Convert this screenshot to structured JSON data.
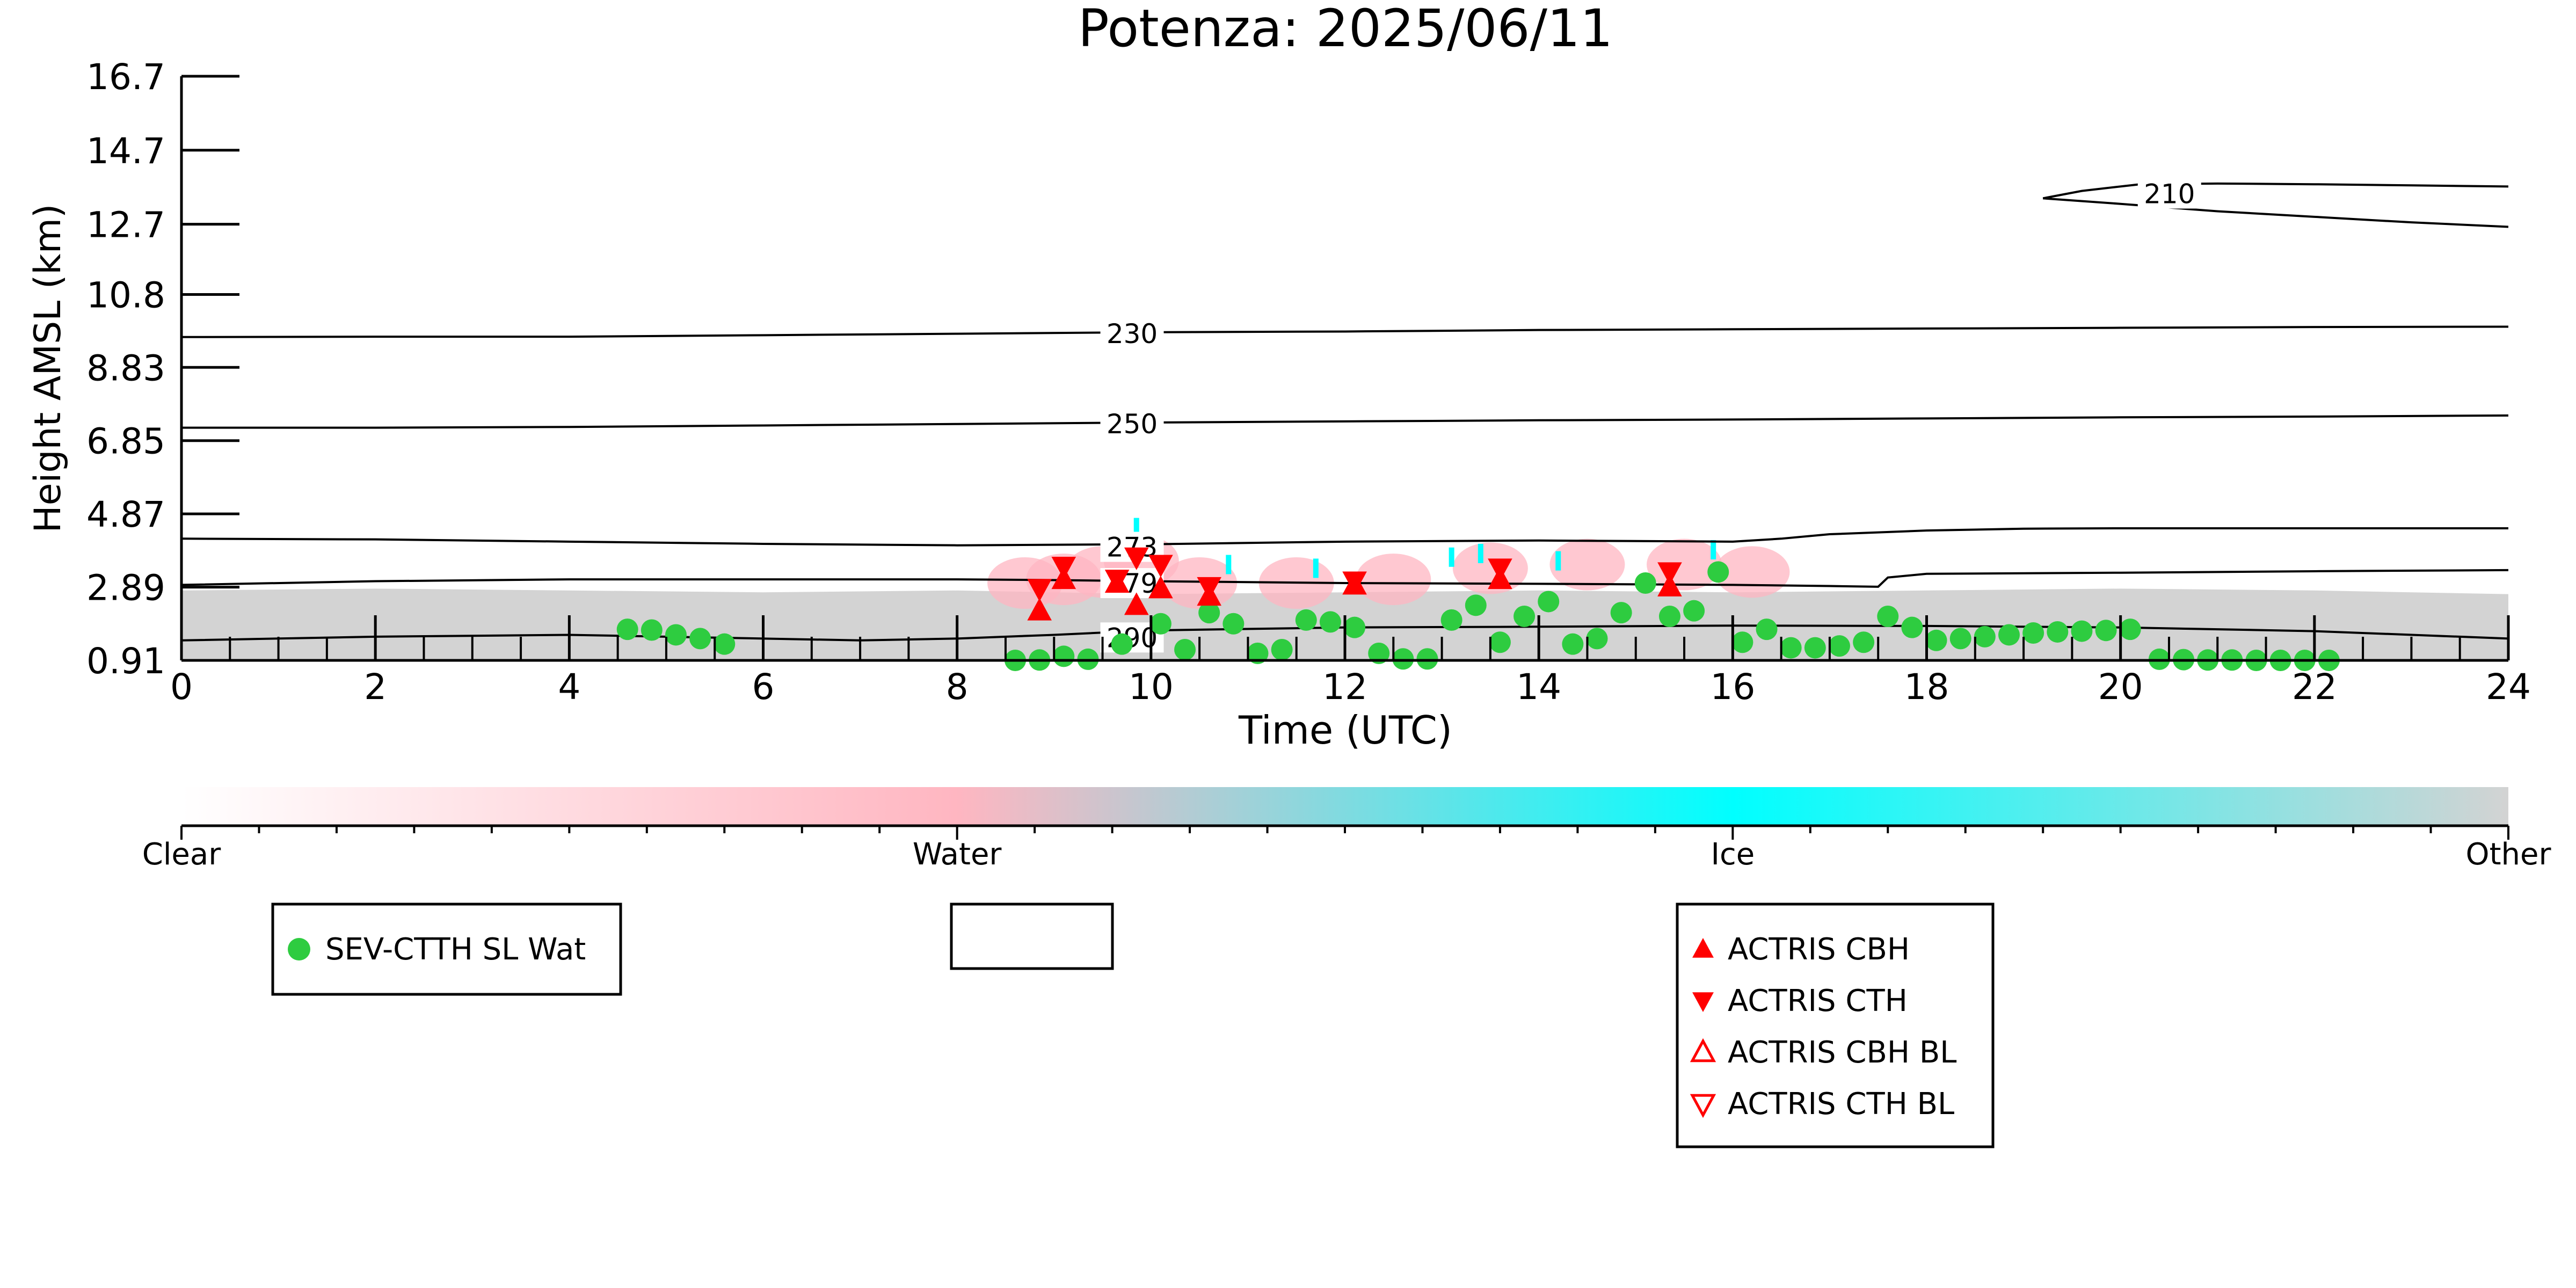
{
  "chart_data": {
    "type": "scatter",
    "title": "Potenza: 2025/06/11",
    "xlabel": "Time (UTC)",
    "ylabel": "Height AMSL (km)",
    "xlim": [
      0,
      24
    ],
    "ylim": [
      0.91,
      16.7
    ],
    "x_ticks": [
      "0",
      "2",
      "4",
      "6",
      "8",
      "10",
      "12",
      "14",
      "16",
      "18",
      "20",
      "22",
      "24"
    ],
    "y_ticks": [
      "0.91",
      "2.89",
      "4.87",
      "6.85",
      "8.83",
      "10.8",
      "12.7",
      "14.7",
      "16.7"
    ],
    "background_clear_band": {
      "x": [
        0,
        24
      ],
      "top_km": [
        2.8,
        2.85,
        2.8,
        2.75,
        2.8,
        2.7,
        2.75,
        2.8,
        2.75,
        2.8,
        2.85,
        2.8,
        2.7
      ],
      "color": "#d3d3d3"
    },
    "contours": [
      {
        "label": "210",
        "color": "#000000",
        "segments": [
          {
            "x": [
              19.2,
              19.6,
              20.2,
              21.0,
              22.0,
              23.0,
              24.0
            ],
            "y": [
              13.4,
              13.6,
              13.78,
              13.8,
              13.78,
              13.75,
              13.72
            ]
          },
          {
            "x": [
              19.2,
              20.0,
              21.0,
              22.0,
              23.0,
              24.0
            ],
            "y": [
              13.4,
              13.25,
              13.05,
              12.9,
              12.75,
              12.63
            ]
          }
        ],
        "label_pos": [
          20.2,
          13.5
        ]
      },
      {
        "label": "230",
        "color": "#000000",
        "x": [
          0,
          2,
          4,
          6,
          8,
          10,
          12,
          14,
          16,
          18,
          20,
          22,
          24
        ],
        "y": [
          9.65,
          9.66,
          9.66,
          9.7,
          9.74,
          9.78,
          9.8,
          9.84,
          9.86,
          9.88,
          9.9,
          9.92,
          9.93
        ],
        "label_pos": [
          9.5,
          9.72
        ]
      },
      {
        "label": "250",
        "color": "#000000",
        "x": [
          0,
          2,
          4,
          6,
          8,
          10,
          12,
          14,
          16,
          18,
          20,
          22,
          24
        ],
        "y": [
          7.2,
          7.2,
          7.22,
          7.26,
          7.3,
          7.34,
          7.37,
          7.4,
          7.42,
          7.45,
          7.48,
          7.5,
          7.53
        ],
        "label_pos": [
          9.5,
          7.28
        ]
      },
      {
        "label": "273",
        "color": "#000000",
        "x": [
          0,
          2,
          4,
          6,
          8,
          10,
          12,
          14,
          16,
          16.5,
          17,
          18,
          19,
          20,
          22,
          24
        ],
        "y": [
          4.2,
          4.18,
          4.12,
          4.06,
          4.02,
          4.05,
          4.12,
          4.15,
          4.12,
          4.2,
          4.32,
          4.42,
          4.47,
          4.48,
          4.48,
          4.48
        ],
        "label_pos": [
          9.5,
          3.95
        ]
      },
      {
        "label": "279",
        "color": "#000000",
        "x": [
          0,
          2,
          4,
          6,
          8,
          9,
          10,
          12,
          14,
          16,
          17,
          17.5,
          17.6,
          18,
          20,
          22,
          24
        ],
        "y": [
          2.95,
          3.05,
          3.1,
          3.1,
          3.1,
          3.08,
          3.05,
          3.0,
          2.98,
          2.95,
          2.92,
          2.9,
          3.15,
          3.25,
          3.28,
          3.32,
          3.35
        ],
        "label_pos": [
          9.5,
          2.97
        ]
      },
      {
        "label": "290",
        "color": "#000000",
        "x": [
          0,
          2,
          4,
          6,
          7,
          8,
          9,
          10,
          12,
          14,
          16,
          18,
          20,
          22,
          24
        ],
        "y": [
          1.45,
          1.55,
          1.6,
          1.5,
          1.45,
          1.5,
          1.6,
          1.72,
          1.8,
          1.82,
          1.85,
          1.84,
          1.8,
          1.7,
          1.5
        ],
        "label_pos": [
          9.5,
          1.5
        ]
      }
    ],
    "cloud_patches": [
      {
        "class": "Water",
        "color": "#ffb6c1",
        "x": [
          8.7,
          9.1,
          9.5,
          9.9,
          10.5,
          11.5,
          12.5,
          13.5,
          14.5,
          15.5,
          16.2
        ],
        "y": [
          3.0,
          3.1,
          3.3,
          3.6,
          3.0,
          3.0,
          3.1,
          3.4,
          3.5,
          3.5,
          3.3
        ]
      },
      {
        "class": "Ice",
        "color": "#00ffff",
        "points": [
          [
            9.85,
            4.5
          ],
          [
            9.7,
            4.0
          ],
          [
            10.8,
            3.5
          ],
          [
            11.7,
            3.4
          ],
          [
            13.1,
            3.7
          ],
          [
            13.4,
            3.8
          ],
          [
            14.2,
            3.6
          ],
          [
            15.8,
            3.9
          ]
        ]
      }
    ],
    "series": [
      {
        "name": "SEV-CTTH SL Wat",
        "marker": "circle",
        "color": "#2ecc40",
        "points": [
          [
            4.6,
            1.75
          ],
          [
            4.85,
            1.73
          ],
          [
            5.1,
            1.6
          ],
          [
            5.35,
            1.5
          ],
          [
            5.6,
            1.35
          ],
          [
            8.6,
            0.91
          ],
          [
            8.85,
            0.92
          ],
          [
            9.1,
            1.02
          ],
          [
            9.35,
            0.94
          ],
          [
            9.7,
            1.35
          ],
          [
            10.1,
            1.9
          ],
          [
            10.35,
            1.2
          ],
          [
            10.6,
            2.2
          ],
          [
            10.85,
            1.9
          ],
          [
            11.1,
            1.1
          ],
          [
            11.35,
            1.2
          ],
          [
            11.6,
            2.0
          ],
          [
            11.85,
            1.95
          ],
          [
            12.1,
            1.8
          ],
          [
            12.35,
            1.1
          ],
          [
            12.6,
            0.95
          ],
          [
            12.85,
            0.95
          ],
          [
            13.1,
            2.0
          ],
          [
            13.35,
            2.4
          ],
          [
            13.6,
            1.4
          ],
          [
            13.85,
            2.1
          ],
          [
            14.1,
            2.5
          ],
          [
            14.35,
            1.35
          ],
          [
            14.6,
            1.5
          ],
          [
            14.85,
            2.2
          ],
          [
            15.1,
            3.0
          ],
          [
            15.35,
            2.1
          ],
          [
            15.6,
            2.25
          ],
          [
            15.85,
            3.3
          ],
          [
            16.1,
            1.4
          ],
          [
            16.35,
            1.75
          ],
          [
            16.6,
            1.25
          ],
          [
            16.85,
            1.25
          ],
          [
            17.1,
            1.3
          ],
          [
            17.35,
            1.4
          ],
          [
            17.6,
            2.1
          ],
          [
            17.85,
            1.8
          ],
          [
            18.1,
            1.45
          ],
          [
            18.35,
            1.5
          ],
          [
            18.6,
            1.55
          ],
          [
            18.85,
            1.6
          ],
          [
            19.1,
            1.65
          ],
          [
            19.35,
            1.68
          ],
          [
            19.6,
            1.7
          ],
          [
            19.85,
            1.72
          ],
          [
            20.1,
            1.75
          ],
          [
            20.4,
            0.94
          ],
          [
            20.65,
            0.93
          ],
          [
            20.9,
            0.92
          ],
          [
            21.15,
            0.92
          ],
          [
            21.4,
            0.91
          ],
          [
            21.65,
            0.91
          ],
          [
            21.9,
            0.91
          ],
          [
            22.15,
            0.91
          ]
        ]
      },
      {
        "name": "ACTRIS CBH",
        "marker": "triangle-up",
        "color": "#ff0000",
        "filled": true,
        "points": [
          [
            8.85,
            2.25
          ],
          [
            9.1,
            3.1
          ],
          [
            9.65,
            3.0
          ],
          [
            9.85,
            2.4
          ],
          [
            10.1,
            2.85
          ],
          [
            10.6,
            2.65
          ],
          [
            12.1,
            2.95
          ],
          [
            13.6,
            3.1
          ],
          [
            15.35,
            2.9
          ]
        ]
      },
      {
        "name": "ACTRIS CTH",
        "marker": "triangle-down",
        "color": "#ff0000",
        "filled": true,
        "points": [
          [
            8.85,
            2.85
          ],
          [
            9.1,
            3.45
          ],
          [
            9.65,
            3.1
          ],
          [
            9.85,
            3.7
          ],
          [
            10.1,
            3.5
          ],
          [
            10.6,
            2.9
          ],
          [
            12.1,
            3.05
          ],
          [
            13.6,
            3.4
          ],
          [
            15.35,
            3.3
          ]
        ]
      },
      {
        "name": "ACTRIS CBH BL",
        "marker": "triangle-up",
        "color": "#ff0000",
        "filled": false,
        "points": []
      },
      {
        "name": "ACTRIS CTH BL",
        "marker": "triangle-down",
        "color": "#ff0000",
        "filled": false,
        "points": []
      }
    ],
    "colorbar": {
      "labels": [
        "Clear",
        "Water",
        "Ice",
        "Other"
      ],
      "stops": [
        "#ffffff",
        "#ffb6c1",
        "#00ffff",
        "#d3d3d3"
      ]
    },
    "legend_boxes": [
      {
        "placement": "bottom-left",
        "entries": [
          "SEV-CTTH SL Wat"
        ]
      },
      {
        "placement": "bottom-center",
        "entries": []
      },
      {
        "placement": "bottom-right",
        "entries": [
          "ACTRIS CBH",
          "ACTRIS CTH",
          "ACTRIS CBH BL",
          "ACTRIS CTH BL"
        ]
      }
    ]
  }
}
